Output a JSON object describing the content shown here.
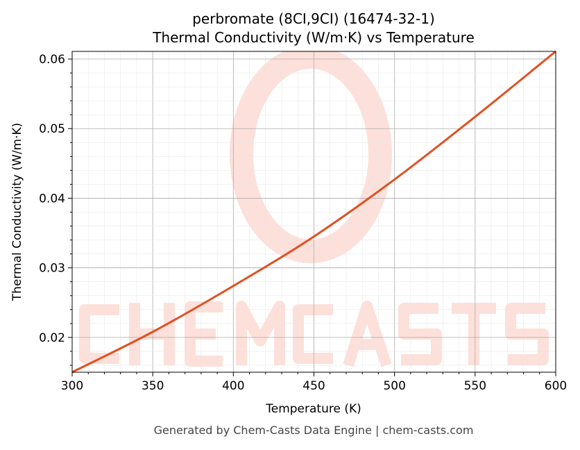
{
  "chart_data": {
    "type": "line",
    "title_line1": "perbromate (8CI,9CI) (16474-32-1)",
    "title_line2": "Thermal Conductivity (W/m·K) vs Temperature",
    "xlabel": "Temperature (K)",
    "ylabel": "Thermal Conductivity (W/m·K)",
    "xlim": [
      300,
      600
    ],
    "ylim": [
      0.015,
      0.0611
    ],
    "xticks": [
      "300",
      "350",
      "400",
      "450",
      "500",
      "550",
      "600"
    ],
    "yticks": [
      "0.02",
      "0.03",
      "0.04",
      "0.05",
      "0.06"
    ],
    "grid": true,
    "line_color": "#e05020",
    "x": [
      300,
      350,
      400,
      450,
      500,
      550,
      600
    ],
    "y": [
      0.015,
      0.0208,
      0.0274,
      0.0345,
      0.0427,
      0.0517,
      0.0611
    ]
  },
  "watermark": {
    "text": "CHEMCASTS",
    "color": "#fde0da"
  },
  "footer": "Generated by Chem-Casts Data Engine | chem-casts.com"
}
